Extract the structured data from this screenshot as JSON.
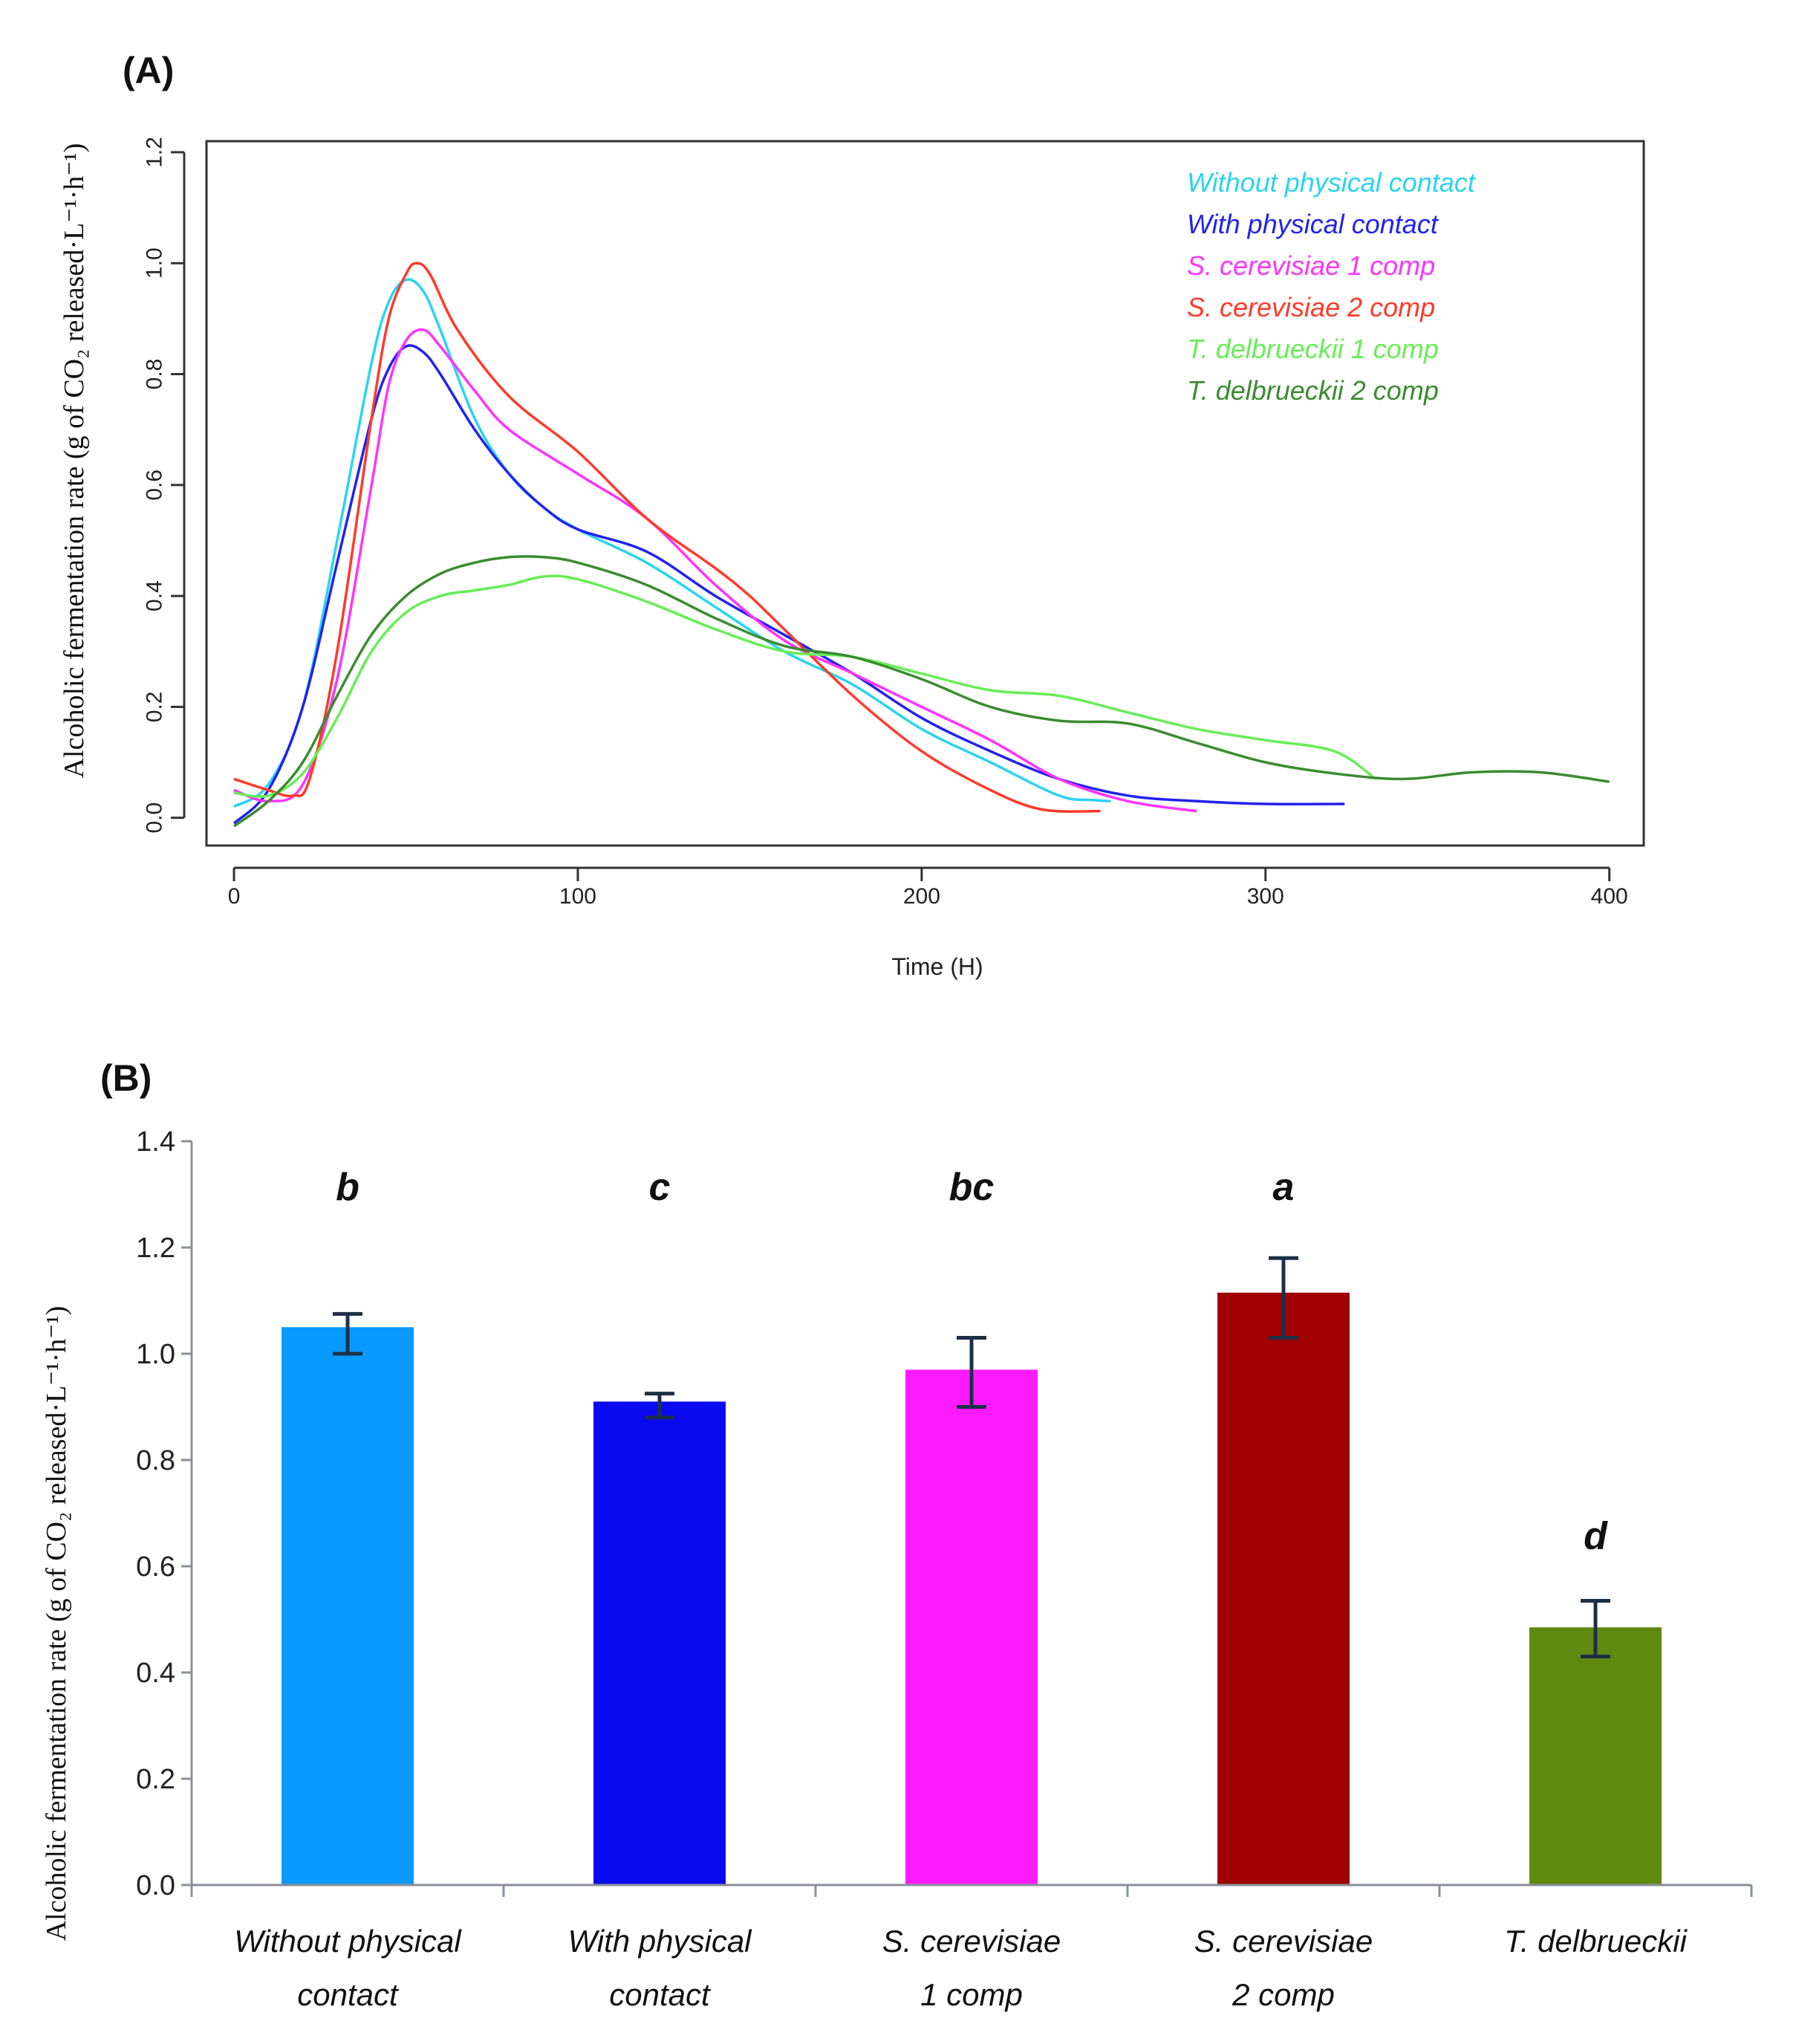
{
  "panel_a_label": "(A)",
  "panel_b_label": "(B)",
  "chart_data": [
    {
      "type": "line",
      "title": "",
      "xlabel": "Time (H)",
      "ylabel": "Alcoholic fermentation rate (g of CO₂ released·L⁻¹·h⁻¹)",
      "xlim": [
        -8,
        410
      ],
      "ylim": [
        -0.05,
        1.22
      ],
      "xticks": [
        "0",
        "100",
        "200",
        "300",
        "400"
      ],
      "xtick_values": [
        0,
        100,
        200,
        300,
        400
      ],
      "yticks": [
        "0.0",
        "0.2",
        "0.4",
        "0.6",
        "0.8",
        "1.0",
        "1.2"
      ],
      "ytick_values": [
        0,
        0.2,
        0.4,
        0.6,
        0.8,
        1.0,
        1.2
      ],
      "legend_position": "top-right",
      "series": [
        {
          "name": "Without physical contact",
          "color": "#2ad4f0",
          "x": [
            0,
            10,
            20,
            30,
            40,
            45,
            50,
            55,
            60,
            70,
            80,
            90,
            100,
            120,
            140,
            160,
            180,
            200,
            220,
            240,
            250,
            255
          ],
          "y": [
            0.02,
            0.06,
            0.2,
            0.5,
            0.82,
            0.93,
            0.97,
            0.95,
            0.88,
            0.72,
            0.62,
            0.56,
            0.52,
            0.46,
            0.38,
            0.3,
            0.24,
            0.16,
            0.1,
            0.04,
            0.032,
            0.03
          ]
        },
        {
          "name": "With physical contact",
          "color": "#2222ee",
          "x": [
            0,
            10,
            20,
            30,
            40,
            45,
            50,
            55,
            60,
            70,
            80,
            90,
            100,
            120,
            140,
            160,
            180,
            200,
            220,
            240,
            260,
            280,
            300,
            323
          ],
          "y": [
            -0.01,
            0.05,
            0.2,
            0.46,
            0.72,
            0.81,
            0.85,
            0.84,
            0.8,
            0.7,
            0.62,
            0.56,
            0.52,
            0.48,
            0.4,
            0.33,
            0.26,
            0.18,
            0.12,
            0.07,
            0.04,
            0.03,
            0.025,
            0.025
          ]
        },
        {
          "name": "S. cerevisiae 1 comp",
          "color": "#ff33ff",
          "x": [
            0,
            10,
            20,
            30,
            40,
            45,
            50,
            55,
            60,
            70,
            80,
            100,
            120,
            140,
            160,
            180,
            200,
            220,
            240,
            260,
            280
          ],
          "y": [
            0.05,
            0.03,
            0.06,
            0.25,
            0.6,
            0.78,
            0.86,
            0.88,
            0.85,
            0.77,
            0.7,
            0.62,
            0.54,
            0.42,
            0.32,
            0.26,
            0.2,
            0.14,
            0.07,
            0.03,
            0.012
          ]
        },
        {
          "name": "S. cerevisiae 2 comp",
          "color": "#ff3a2a",
          "x": [
            0,
            10,
            17,
            22,
            30,
            40,
            45,
            50,
            53,
            57,
            65,
            80,
            100,
            120,
            140,
            150,
            160,
            180,
            200,
            220,
            235,
            252
          ],
          "y": [
            0.07,
            0.05,
            0.04,
            0.07,
            0.3,
            0.72,
            0.9,
            0.98,
            1.0,
            0.98,
            0.88,
            0.76,
            0.66,
            0.54,
            0.45,
            0.4,
            0.34,
            0.22,
            0.12,
            0.05,
            0.015,
            0.012
          ]
        },
        {
          "name": "T. delbrueckii 1 comp",
          "color": "#66ee55",
          "x": [
            0,
            10,
            20,
            30,
            40,
            50,
            60,
            70,
            80,
            90,
            100,
            120,
            140,
            160,
            180,
            200,
            220,
            240,
            260,
            280,
            300,
            320,
            332
          ],
          "y": [
            0.045,
            0.04,
            0.08,
            0.18,
            0.3,
            0.37,
            0.4,
            0.41,
            0.42,
            0.435,
            0.43,
            0.39,
            0.34,
            0.3,
            0.29,
            0.26,
            0.23,
            0.22,
            0.19,
            0.16,
            0.14,
            0.12,
            0.07
          ]
        },
        {
          "name": "T. delbrueckii 2 comp",
          "color": "#3a8c2f",
          "x": [
            0,
            10,
            20,
            30,
            40,
            50,
            60,
            70,
            80,
            90,
            100,
            120,
            140,
            160,
            180,
            200,
            220,
            240,
            260,
            280,
            300,
            320,
            340,
            360,
            380,
            400
          ],
          "y": [
            -0.015,
            0.03,
            0.1,
            0.22,
            0.33,
            0.4,
            0.44,
            0.46,
            0.47,
            0.47,
            0.46,
            0.42,
            0.36,
            0.31,
            0.29,
            0.25,
            0.2,
            0.175,
            0.17,
            0.135,
            0.1,
            0.08,
            0.07,
            0.082,
            0.082,
            0.065
          ]
        }
      ]
    },
    {
      "type": "bar",
      "title": "",
      "xlabel": "",
      "ylabel": "Alcoholic fermentation rate (g of CO₂ released·L⁻¹·h⁻¹)",
      "ylim": [
        0,
        1.4
      ],
      "yticks": [
        "0.0",
        "0.2",
        "0.4",
        "0.6",
        "0.8",
        "1.0",
        "1.2",
        "1.4"
      ],
      "ytick_values": [
        0,
        0.2,
        0.4,
        0.6,
        0.8,
        1.0,
        1.2,
        1.4
      ],
      "categories": [
        [
          "Without physical",
          "contact"
        ],
        [
          "With physical",
          "contact"
        ],
        [
          "S. cerevisiae",
          "1 comp"
        ],
        [
          "S. cerevisiae",
          "2 comp"
        ],
        [
          "T. delbrueckii"
        ]
      ],
      "values": [
        1.05,
        0.91,
        0.97,
        1.115,
        0.485
      ],
      "error_low": [
        1.0,
        0.88,
        0.9,
        1.03,
        0.43
      ],
      "error_high": [
        1.075,
        0.925,
        1.03,
        1.18,
        0.535
      ],
      "significance": [
        "b",
        "c",
        "bc",
        "a",
        "d"
      ],
      "colors": [
        "#0a99ff",
        "#0a0aee",
        "#ff1aff",
        "#a00000",
        "#5e8a10"
      ],
      "error_bar_color": "#1e3048"
    }
  ]
}
